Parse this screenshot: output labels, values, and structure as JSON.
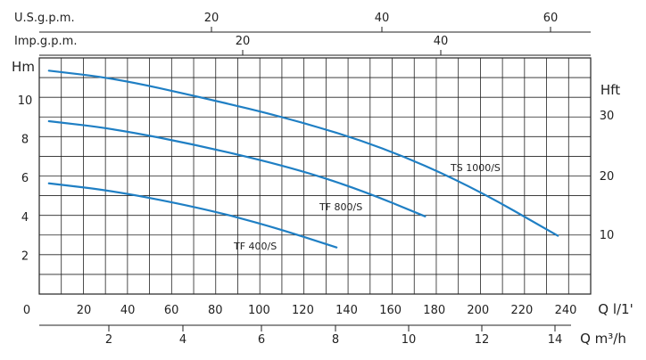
{
  "chart_data": {
    "type": "line",
    "x_unit_label": "Q l/1'",
    "y_unit_label": "Hm",
    "y2_unit_label": "Hft",
    "xlim": [
      0,
      250
    ],
    "ylim": [
      0,
      12
    ],
    "grid": true,
    "x_ticks": [
      "0",
      "20",
      "40",
      "60",
      "80",
      "100",
      "120",
      "140",
      "160",
      "180",
      "200",
      "220",
      "240"
    ],
    "y_ticks": [
      "2",
      "4",
      "6",
      "8",
      "10"
    ],
    "y2_ticks": [
      "10",
      "20",
      "30"
    ],
    "secondary_axes": {
      "us_gpm": {
        "label": "U.S.g.p.m.",
        "ticks": [
          "20",
          "40",
          "60"
        ]
      },
      "imp_gpm": {
        "label": "Imp.g.p.m.",
        "ticks": [
          "20",
          "40"
        ]
      },
      "m3h": {
        "label": "Q m³/h",
        "ticks": [
          "2",
          "4",
          "6",
          "8",
          "10",
          "12",
          "14"
        ]
      }
    },
    "series": [
      {
        "name": "TS 1000/S",
        "x": [
          10,
          40,
          80,
          120,
          160,
          200,
          240
        ],
        "y": [
          11.5,
          11.1,
          10.1,
          9.0,
          7.6,
          5.6,
          3.0
        ]
      },
      {
        "name": "TF 800/S",
        "x": [
          10,
          40,
          80,
          120,
          150,
          180
        ],
        "y": [
          8.9,
          8.5,
          7.6,
          6.5,
          5.4,
          4.0
        ]
      },
      {
        "name": "TF 400/S",
        "x": [
          10,
          40,
          80,
          110,
          140
        ],
        "y": [
          5.7,
          5.3,
          4.4,
          3.5,
          2.4
        ]
      }
    ],
    "colors": {
      "curve": "#1f7fc4",
      "grid": "#222222",
      "text": "#222222"
    }
  }
}
